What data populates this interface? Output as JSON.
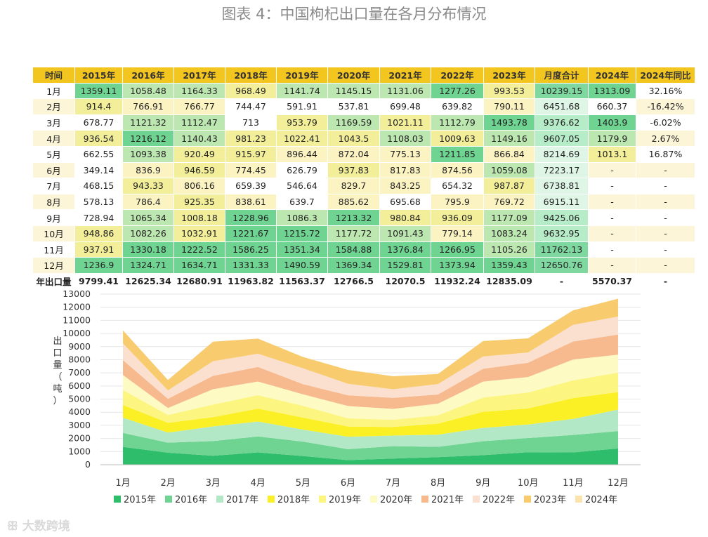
{
  "title": "图表 4：中国枸杞出口量在各月分布情况",
  "table": {
    "headers": [
      "时间",
      "2015年",
      "2016年",
      "2017年",
      "2018年",
      "2019年",
      "2020年",
      "2021年",
      "2022年",
      "2023年",
      "月度合计",
      "2024年",
      "2024年同比"
    ],
    "rows": [
      {
        "month": "1月",
        "values": [
          "1359.11",
          "1058.48",
          "1164.33",
          "968.49",
          "1141.74",
          "1145.15",
          "1131.06",
          "1277.26",
          "993.53"
        ],
        "total": "10239.15",
        "y2024": "1313.09",
        "yoy": "32.16%"
      },
      {
        "month": "2月",
        "values": [
          "914.4",
          "766.91",
          "766.77",
          "744.47",
          "591.91",
          "537.81",
          "699.48",
          "639.82",
          "790.11"
        ],
        "total": "6451.68",
        "y2024": "660.37",
        "yoy": "-16.42%"
      },
      {
        "month": "3月",
        "values": [
          "678.77",
          "1121.32",
          "1112.47",
          "713",
          "953.79",
          "1169.59",
          "1021.11",
          "1112.79",
          "1493.78"
        ],
        "total": "9376.62",
        "y2024": "1403.9",
        "yoy": "-6.02%"
      },
      {
        "month": "4月",
        "values": [
          "936.54",
          "1216.12",
          "1140.43",
          "981.23",
          "1022.41",
          "1043.5",
          "1108.03",
          "1009.63",
          "1149.16"
        ],
        "total": "9607.05",
        "y2024": "1179.9",
        "yoy": "2.67%"
      },
      {
        "month": "5月",
        "values": [
          "662.55",
          "1093.38",
          "920.49",
          "915.97",
          "896.44",
          "872.04",
          "775.13",
          "1211.85",
          "866.84"
        ],
        "total": "8214.69",
        "y2024": "1013.1",
        "yoy": "16.87%"
      },
      {
        "month": "6月",
        "values": [
          "349.14",
          "836.9",
          "946.59",
          "774.45",
          "626.79",
          "937.83",
          "817.83",
          "874.56",
          "1059.08"
        ],
        "total": "7223.17",
        "y2024": "-",
        "yoy": "-"
      },
      {
        "month": "7月",
        "values": [
          "468.15",
          "943.33",
          "806.16",
          "659.39",
          "546.64",
          "829.7",
          "843.25",
          "654.32",
          "987.87"
        ],
        "total": "6738.81",
        "y2024": "-",
        "yoy": "-"
      },
      {
        "month": "8月",
        "values": [
          "578.13",
          "786.4",
          "925.35",
          "838.61",
          "639.7",
          "885.62",
          "695.68",
          "795.9",
          "769.72"
        ],
        "total": "6915.11",
        "y2024": "-",
        "yoy": "-"
      },
      {
        "month": "9月",
        "values": [
          "728.94",
          "1065.34",
          "1008.18",
          "1228.96",
          "1086.3",
          "1213.32",
          "980.84",
          "936.09",
          "1177.09"
        ],
        "total": "9425.06",
        "y2024": "-",
        "yoy": "-"
      },
      {
        "month": "10月",
        "values": [
          "948.86",
          "1082.26",
          "1032.91",
          "1221.67",
          "1215.72",
          "1177.72",
          "1091.43",
          "779.14",
          "1083.24"
        ],
        "total": "9632.95",
        "y2024": "-",
        "yoy": "-"
      },
      {
        "month": "11月",
        "values": [
          "937.91",
          "1330.18",
          "1222.52",
          "1586.25",
          "1351.34",
          "1584.88",
          "1376.84",
          "1266.95",
          "1105.26"
        ],
        "total": "11762.13",
        "y2024": "-",
        "yoy": "-"
      },
      {
        "month": "12月",
        "values": [
          "1236.9",
          "1324.71",
          "1634.71",
          "1331.33",
          "1490.59",
          "1369.34",
          "1529.81",
          "1373.94",
          "1359.43"
        ],
        "total": "12650.76",
        "y2024": "-",
        "yoy": "-"
      }
    ],
    "totals": {
      "label": "年出口量",
      "values": [
        "9799.41",
        "12625.34",
        "12680.91",
        "11963.82",
        "11563.37",
        "12766.5",
        "12070.5",
        "11932.24",
        "12835.09"
      ],
      "total": "-",
      "y2024": "5570.37",
      "yoy": "-"
    }
  },
  "chart_data": {
    "type": "area",
    "stacked": true,
    "ylabel": "出口量（吨）",
    "ylim": [
      0,
      13000
    ],
    "yticks": [
      0,
      1000,
      2000,
      3000,
      4000,
      5000,
      6000,
      7000,
      8000,
      9000,
      10000,
      11000,
      12000,
      13000
    ],
    "categories": [
      "1月",
      "2月",
      "3月",
      "4月",
      "5月",
      "6月",
      "7月",
      "8月",
      "9月",
      "10月",
      "11月",
      "12月"
    ],
    "series": [
      {
        "name": "2015年",
        "color": "#2ebd6b",
        "values": [
          1359.11,
          914.4,
          678.77,
          936.54,
          662.55,
          349.14,
          468.15,
          578.13,
          728.94,
          948.86,
          937.91,
          1236.9
        ]
      },
      {
        "name": "2016年",
        "color": "#6fd392",
        "values": [
          1058.48,
          766.91,
          1121.32,
          1216.12,
          1093.38,
          836.9,
          943.33,
          786.4,
          1065.34,
          1082.26,
          1330.18,
          1324.71
        ]
      },
      {
        "name": "2017年",
        "color": "#b3e8c6",
        "values": [
          1164.33,
          766.77,
          1112.47,
          1140.43,
          920.49,
          946.59,
          806.16,
          925.35,
          1008.18,
          1032.91,
          1222.52,
          1634.71
        ]
      },
      {
        "name": "2018年",
        "color": "#fbf026",
        "values": [
          968.49,
          744.47,
          713,
          981.23,
          915.97,
          774.45,
          659.39,
          838.61,
          1228.96,
          1221.67,
          1586.25,
          1331.33
        ]
      },
      {
        "name": "2019年",
        "color": "#fcf57f",
        "values": [
          1141.74,
          591.91,
          953.79,
          1022.41,
          896.44,
          626.79,
          546.64,
          639.7,
          1086.3,
          1215.72,
          1351.34,
          1490.59
        ]
      },
      {
        "name": "2020年",
        "color": "#fdfac3",
        "values": [
          1145.15,
          537.81,
          1169.59,
          1043.5,
          872.04,
          937.83,
          829.7,
          885.62,
          1213.32,
          1177.72,
          1584.88,
          1369.34
        ]
      },
      {
        "name": "2021年",
        "color": "#f7b98e",
        "values": [
          1131.06,
          699.48,
          1021.11,
          1108.03,
          775.13,
          817.83,
          843.25,
          695.68,
          980.84,
          1091.43,
          1376.84,
          1529.81
        ]
      },
      {
        "name": "2022年",
        "color": "#fbe0cf",
        "values": [
          1277.26,
          639.82,
          1112.79,
          1009.63,
          1211.85,
          874.56,
          654.32,
          795.9,
          936.09,
          779.14,
          1266.95,
          1373.94
        ]
      },
      {
        "name": "2023年",
        "color": "#f8cb6e",
        "values": [
          993.53,
          790.11,
          1493.78,
          1149.16,
          866.84,
          1059.08,
          987.87,
          769.72,
          1177.09,
          1083.24,
          1105.26,
          1359.43
        ]
      },
      {
        "name": "2024年",
        "color": "#fbe3ac",
        "values": [
          null,
          null,
          null,
          null,
          null,
          null,
          null,
          null,
          null,
          null,
          null,
          null
        ]
      }
    ]
  },
  "watermark": "大数跨境"
}
